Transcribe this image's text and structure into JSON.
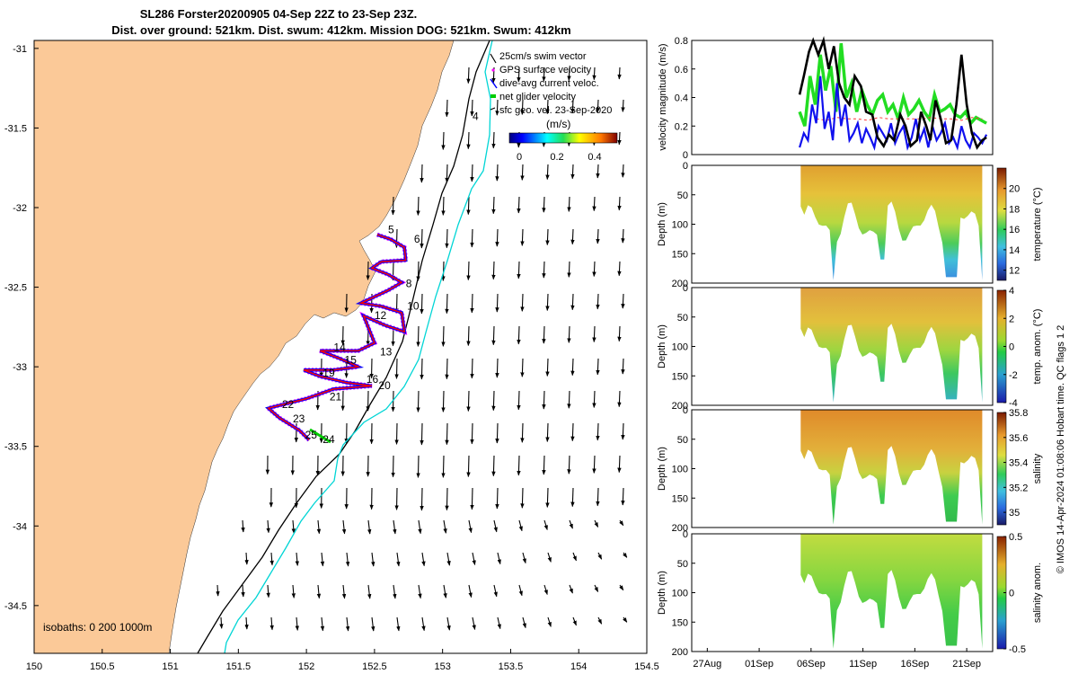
{
  "title_line1": "SL286 Forster20200905 04-Sep 22Z to 23-Sep 23Z.",
  "title_line2": "Dist. over ground: 521km. Dist. swum: 412km. Mission DOG: 521km. Swum: 412km",
  "footer_note": "© IMOS 14-Apr-2024 01:08:06 Hobart time. QC flags 1  2",
  "colors": {
    "land": "#fbc998",
    "gps": "#ff00ff",
    "dive_avg": "#0000ff",
    "net": "#00cc00",
    "swim": "#ff0000",
    "isobath": "#000000",
    "sfc_front": "#00d5d5",
    "black_line": "#000000",
    "green_line": "#22dd22",
    "blue_line": "#1010ee",
    "red_line": "#ff3333"
  },
  "chart_data": [
    {
      "type": "scatter",
      "name_key": "map",
      "xlim": [
        150,
        154.5
      ],
      "ylim": [
        -34.8,
        -30.95
      ],
      "x_ticks": [
        "150",
        "150.5",
        "151",
        "151.5",
        "152",
        "152.5",
        "153",
        "153.5",
        "154",
        "154.5"
      ],
      "y_ticks": [
        "-31",
        "-31.5",
        "-32",
        "-32.5",
        "-33",
        "-33.5",
        "-34",
        "-34.5"
      ],
      "legend": [
        "25cm/s swim vector",
        "GPS surface velocity",
        "dive-avg current veloc.",
        "net glider velocity",
        "sfc geo. vel. 23-Sep-2020"
      ],
      "colorbar_label": "(m/s)",
      "colorbar_ticks": [
        "0",
        "0.2",
        "0.4"
      ],
      "isobath_label": "isobaths: 0   200  1000m",
      "track_labels": [
        {
          "t": "4",
          "lon": 153.22,
          "lat": -31.45
        },
        {
          "t": "5",
          "lon": 152.6,
          "lat": -32.16
        },
        {
          "t": "6",
          "lon": 152.79,
          "lat": -32.22
        },
        {
          "t": "8",
          "lon": 152.73,
          "lat": -32.5
        },
        {
          "t": "10",
          "lon": 152.74,
          "lat": -32.64
        },
        {
          "t": "12",
          "lon": 152.5,
          "lat": -32.7
        },
        {
          "t": "13",
          "lon": 152.54,
          "lat": -32.93
        },
        {
          "t": "14",
          "lon": 152.2,
          "lat": -32.9
        },
        {
          "t": "15",
          "lon": 152.28,
          "lat": -32.98
        },
        {
          "t": "16",
          "lon": 152.44,
          "lat": -33.1
        },
        {
          "t": "19",
          "lon": 152.12,
          "lat": -33.06
        },
        {
          "t": "20",
          "lon": 152.53,
          "lat": -33.14
        },
        {
          "t": "21",
          "lon": 152.17,
          "lat": -33.21
        },
        {
          "t": "22",
          "lon": 151.82,
          "lat": -33.26
        },
        {
          "t": "23",
          "lon": 151.9,
          "lat": -33.35
        },
        {
          "t": "24",
          "lon": 152.12,
          "lat": -33.48
        },
        {
          "t": "25",
          "lon": 151.99,
          "lat": -33.45
        }
      ],
      "track": [
        [
          152.52,
          -32.17
        ],
        [
          152.62,
          -32.2
        ],
        [
          152.72,
          -32.25
        ],
        [
          152.73,
          -32.33
        ],
        [
          152.55,
          -32.34
        ],
        [
          152.48,
          -32.38
        ],
        [
          152.6,
          -32.42
        ],
        [
          152.7,
          -32.47
        ],
        [
          152.6,
          -32.52
        ],
        [
          152.4,
          -32.6
        ],
        [
          152.55,
          -32.62
        ],
        [
          152.7,
          -32.66
        ],
        [
          152.72,
          -32.78
        ],
        [
          152.58,
          -32.74
        ],
        [
          152.42,
          -32.68
        ],
        [
          152.5,
          -32.85
        ],
        [
          152.38,
          -32.9
        ],
        [
          152.1,
          -32.9
        ],
        [
          152.25,
          -32.95
        ],
        [
          152.38,
          -33.0
        ],
        [
          152.2,
          -33.02
        ],
        [
          151.98,
          -33.02
        ],
        [
          152.1,
          -33.06
        ],
        [
          152.3,
          -33.1
        ],
        [
          152.48,
          -33.12
        ],
        [
          152.2,
          -33.14
        ],
        [
          152.0,
          -33.2
        ],
        [
          151.72,
          -33.26
        ],
        [
          151.8,
          -33.32
        ],
        [
          151.95,
          -33.4
        ],
        [
          152.02,
          -33.46
        ]
      ]
    },
    {
      "type": "line",
      "name_key": "velocity",
      "ylabel": "velocity magnitude (m/s)",
      "ylim": [
        0,
        0.8
      ],
      "y_ticks": [
        "0",
        "0.2",
        "0.4",
        "0.6",
        "0.8"
      ],
      "x_days": [
        0,
        5,
        10,
        15,
        20,
        25
      ],
      "x_tick_labels": [
        "27Aug",
        "01Sep",
        "06Sep",
        "11Sep",
        "16Sep",
        "21Sep"
      ],
      "xlim_day": [
        -1.5,
        27.5
      ],
      "series": [
        {
          "key": "black",
          "x": [
            8.9,
            9.3,
            9.8,
            10.2,
            10.7,
            11.2,
            11.7,
            12.2,
            12.7,
            13.2,
            13.7,
            14.2,
            14.8,
            15.3,
            15.9,
            16.4,
            17.0,
            17.5,
            18.0,
            18.6,
            19.1,
            19.6,
            20.2,
            20.6,
            21.1,
            21.5,
            22.0,
            22.5,
            23.0,
            23.5,
            24.0,
            24.5,
            25.0,
            25.5,
            26.0,
            26.5,
            26.9
          ],
          "y": [
            0.42,
            0.55,
            0.72,
            0.82,
            0.7,
            0.82,
            0.6,
            0.76,
            0.5,
            0.4,
            0.35,
            0.55,
            0.48,
            0.3,
            0.28,
            0.12,
            0.06,
            0.14,
            0.1,
            0.28,
            0.2,
            0.06,
            0.1,
            0.3,
            0.2,
            0.1,
            0.38,
            0.25,
            0.08,
            0.1,
            0.35,
            0.7,
            0.35,
            0.15,
            0.05,
            0.1,
            0.12
          ]
        },
        {
          "key": "green",
          "x": [
            8.9,
            9.4,
            9.9,
            10.4,
            10.9,
            11.4,
            11.9,
            12.4,
            12.9,
            13.4,
            13.9,
            14.4,
            14.9,
            15.4,
            15.9,
            16.4,
            16.9,
            17.4,
            17.9,
            18.4,
            18.9,
            19.4,
            19.9,
            20.4,
            20.9,
            21.4,
            21.9,
            22.4,
            22.9,
            23.4,
            23.9,
            24.4,
            24.9,
            25.4,
            25.9,
            26.4,
            26.9
          ],
          "y": [
            0.3,
            0.2,
            0.55,
            0.35,
            0.7,
            0.45,
            0.62,
            0.3,
            0.78,
            0.4,
            0.5,
            0.3,
            0.45,
            0.35,
            0.28,
            0.38,
            0.42,
            0.3,
            0.35,
            0.25,
            0.4,
            0.28,
            0.32,
            0.38,
            0.3,
            0.25,
            0.42,
            0.3,
            0.32,
            0.35,
            0.28,
            0.26,
            0.3,
            0.22,
            0.26,
            0.24,
            0.22
          ]
        },
        {
          "key": "blue",
          "x": [
            8.9,
            9.3,
            9.7,
            10.1,
            10.5,
            10.9,
            11.3,
            11.7,
            12.1,
            12.5,
            12.9,
            13.3,
            13.7,
            14.1,
            14.5,
            14.9,
            15.3,
            15.7,
            16.1,
            16.5,
            16.9,
            17.3,
            17.7,
            18.1,
            18.5,
            18.9,
            19.3,
            19.7,
            20.1,
            20.5,
            20.9,
            21.3,
            21.7,
            22.1,
            22.5,
            22.9,
            23.3,
            23.7,
            24.1,
            24.5,
            24.9,
            25.3,
            25.7,
            26.1,
            26.5,
            26.9
          ],
          "y": [
            0.05,
            0.15,
            0.1,
            0.35,
            0.22,
            0.55,
            0.18,
            0.3,
            0.1,
            0.5,
            0.2,
            0.35,
            0.1,
            0.15,
            0.22,
            0.08,
            0.18,
            0.12,
            0.05,
            0.2,
            0.15,
            0.1,
            0.22,
            0.08,
            0.15,
            0.2,
            0.05,
            0.12,
            0.25,
            0.1,
            0.18,
            0.05,
            0.2,
            0.1,
            0.15,
            0.22,
            0.08,
            0.12,
            0.05,
            0.2,
            0.1,
            0.05,
            0.15,
            0.12,
            0.08,
            0.14
          ]
        },
        {
          "key": "red",
          "x": [
            10.5,
            11.5,
            12.5,
            13.5,
            14.5,
            15.5,
            16.5,
            17.5,
            18.5,
            19.5,
            20.5,
            21.5,
            22.5,
            23.5,
            24.5,
            25.5,
            26.5
          ],
          "y": [
            0.25,
            0.24,
            0.26,
            0.25,
            0.25,
            0.24,
            0.26,
            0.25,
            0.25,
            0.25,
            0.25,
            0.26,
            0.25,
            0.25,
            0.24,
            0.26,
            0.25
          ]
        }
      ]
    },
    {
      "type": "heatmap",
      "name_key": "temperature",
      "colorbar_label": "temperature (°C)",
      "colorbar_ticks": [
        "12",
        "14",
        "16",
        "18",
        "20"
      ],
      "range": [
        11,
        22
      ],
      "ylabel": "Depth (m)",
      "ylim": [
        0,
        200
      ],
      "y_ticks": [
        "0",
        "50",
        "100",
        "150",
        "200"
      ]
    },
    {
      "type": "heatmap",
      "name_key": "tempanom",
      "colorbar_label": "temp. anom. (°C)",
      "colorbar_ticks": [
        "-4",
        "-2",
        "0",
        "2",
        "4"
      ],
      "range": [
        -4,
        4
      ],
      "ylabel": "Depth (m)",
      "ylim": [
        0,
        200
      ],
      "y_ticks": [
        "0",
        "50",
        "100",
        "150",
        "200"
      ]
    },
    {
      "type": "heatmap",
      "name_key": "salinity",
      "colorbar_label": "salinity",
      "colorbar_ticks": [
        "35",
        "35.2",
        "35.4",
        "35.6",
        "35.8"
      ],
      "range": [
        34.9,
        35.8
      ],
      "ylabel": "Depth (m)",
      "ylim": [
        0,
        200
      ],
      "y_ticks": [
        "0",
        "50",
        "100",
        "150",
        "200"
      ]
    },
    {
      "type": "heatmap",
      "name_key": "salanom",
      "colorbar_label": "salinity anom.",
      "colorbar_ticks": [
        "-0.5",
        "0",
        "0.5"
      ],
      "range": [
        -0.5,
        0.5
      ],
      "ylabel": "Depth (m)",
      "ylim": [
        0,
        200
      ],
      "y_ticks": [
        "0",
        "50",
        "100",
        "150",
        "200"
      ]
    }
  ]
}
